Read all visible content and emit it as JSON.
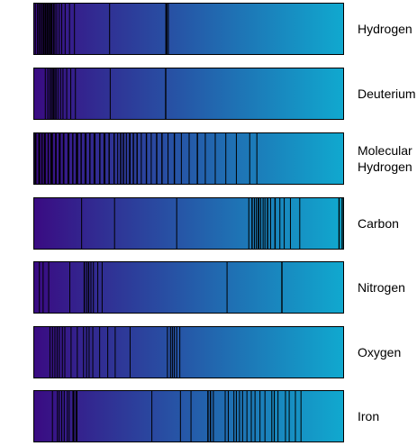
{
  "chart_data": {
    "type": "spectral-lines",
    "title": "",
    "xlabel": "",
    "ylabel": "",
    "x_domain": [
      0,
      1
    ],
    "gradient": {
      "start_color": "#3a0b82",
      "end_color": "#10a9cf"
    },
    "line_color": "#000000",
    "spectra": [
      {
        "name": "Hydrogen",
        "label_lines": [
          "Hydrogen"
        ],
        "lines": [
          {
            "x": 0.005,
            "w": 0.003
          },
          {
            "x": 0.012,
            "w": 0.004
          },
          {
            "x": 0.018,
            "w": 0.004
          },
          {
            "x": 0.024,
            "w": 0.004
          },
          {
            "x": 0.03,
            "w": 0.005
          },
          {
            "x": 0.036,
            "w": 0.005
          },
          {
            "x": 0.042,
            "w": 0.005
          },
          {
            "x": 0.048,
            "w": 0.005
          },
          {
            "x": 0.054,
            "w": 0.005
          },
          {
            "x": 0.058,
            "w": 0.004
          },
          {
            "x": 0.064,
            "w": 0.003
          },
          {
            "x": 0.068,
            "w": 0.002
          },
          {
            "x": 0.074,
            "w": 0.002
          },
          {
            "x": 0.082,
            "w": 0.002
          },
          {
            "x": 0.09,
            "w": 0.002
          },
          {
            "x": 0.101,
            "w": 0.002
          },
          {
            "x": 0.115,
            "w": 0.002
          },
          {
            "x": 0.131,
            "w": 0.002
          },
          {
            "x": 0.244,
            "w": 0.003
          },
          {
            "x": 0.425,
            "w": 0.006
          },
          {
            "x": 0.433,
            "w": 0.003
          }
        ]
      },
      {
        "name": "Deuterium",
        "label_lines": [
          "Deuterium"
        ],
        "lines": [
          {
            "x": 0.037,
            "w": 0.002
          },
          {
            "x": 0.045,
            "w": 0.002
          },
          {
            "x": 0.051,
            "w": 0.002
          },
          {
            "x": 0.056,
            "w": 0.002
          },
          {
            "x": 0.06,
            "w": 0.002
          },
          {
            "x": 0.064,
            "w": 0.002
          },
          {
            "x": 0.068,
            "w": 0.002
          },
          {
            "x": 0.072,
            "w": 0.002
          },
          {
            "x": 0.078,
            "w": 0.002
          },
          {
            "x": 0.086,
            "w": 0.002
          },
          {
            "x": 0.094,
            "w": 0.002
          },
          {
            "x": 0.106,
            "w": 0.002
          },
          {
            "x": 0.119,
            "w": 0.002
          },
          {
            "x": 0.134,
            "w": 0.002
          },
          {
            "x": 0.246,
            "w": 0.002
          },
          {
            "x": 0.424,
            "w": 0.004
          }
        ]
      },
      {
        "name": "Molecular Hydrogen",
        "label_lines": [
          "Molecular",
          "Hydrogen"
        ],
        "lines": [
          {
            "x": 0.004,
            "w": 0.006
          },
          {
            "x": 0.016,
            "w": 0.006
          },
          {
            "x": 0.026,
            "w": 0.004
          },
          {
            "x": 0.034,
            "w": 0.006
          },
          {
            "x": 0.046,
            "w": 0.004
          },
          {
            "x": 0.055,
            "w": 0.008
          },
          {
            "x": 0.07,
            "w": 0.005
          },
          {
            "x": 0.082,
            "w": 0.006
          },
          {
            "x": 0.095,
            "w": 0.005
          },
          {
            "x": 0.11,
            "w": 0.006
          },
          {
            "x": 0.125,
            "w": 0.004
          },
          {
            "x": 0.137,
            "w": 0.007
          },
          {
            "x": 0.152,
            "w": 0.004
          },
          {
            "x": 0.165,
            "w": 0.006
          },
          {
            "x": 0.18,
            "w": 0.004
          },
          {
            "x": 0.194,
            "w": 0.006
          },
          {
            "x": 0.212,
            "w": 0.004
          },
          {
            "x": 0.226,
            "w": 0.006
          },
          {
            "x": 0.242,
            "w": 0.004
          },
          {
            "x": 0.258,
            "w": 0.004
          },
          {
            "x": 0.27,
            "w": 0.003
          },
          {
            "x": 0.279,
            "w": 0.004
          },
          {
            "x": 0.288,
            "w": 0.004
          },
          {
            "x": 0.298,
            "w": 0.003
          },
          {
            "x": 0.308,
            "w": 0.005
          },
          {
            "x": 0.32,
            "w": 0.004
          },
          {
            "x": 0.332,
            "w": 0.004
          },
          {
            "x": 0.346,
            "w": 0.003
          },
          {
            "x": 0.362,
            "w": 0.004
          },
          {
            "x": 0.378,
            "w": 0.002
          },
          {
            "x": 0.395,
            "w": 0.004
          },
          {
            "x": 0.412,
            "w": 0.004
          },
          {
            "x": 0.432,
            "w": 0.003
          },
          {
            "x": 0.452,
            "w": 0.004
          },
          {
            "x": 0.475,
            "w": 0.002
          },
          {
            "x": 0.5,
            "w": 0.002
          },
          {
            "x": 0.526,
            "w": 0.004
          },
          {
            "x": 0.552,
            "w": 0.002
          },
          {
            "x": 0.584,
            "w": 0.002
          },
          {
            "x": 0.618,
            "w": 0.002
          },
          {
            "x": 0.652,
            "w": 0.002
          },
          {
            "x": 0.695,
            "w": 0.002
          },
          {
            "x": 0.718,
            "w": 0.002
          }
        ]
      },
      {
        "name": "Carbon",
        "label_lines": [
          "Carbon"
        ],
        "lines": [
          {
            "x": 0.154,
            "w": 0.002
          },
          {
            "x": 0.26,
            "w": 0.002
          },
          {
            "x": 0.46,
            "w": 0.002
          },
          {
            "x": 0.692,
            "w": 0.003
          },
          {
            "x": 0.702,
            "w": 0.004
          },
          {
            "x": 0.71,
            "w": 0.003
          },
          {
            "x": 0.716,
            "w": 0.002
          },
          {
            "x": 0.722,
            "w": 0.005
          },
          {
            "x": 0.73,
            "w": 0.003
          },
          {
            "x": 0.738,
            "w": 0.002
          },
          {
            "x": 0.744,
            "w": 0.002
          },
          {
            "x": 0.752,
            "w": 0.004
          },
          {
            "x": 0.762,
            "w": 0.003
          },
          {
            "x": 0.776,
            "w": 0.004
          },
          {
            "x": 0.792,
            "w": 0.002
          },
          {
            "x": 0.806,
            "w": 0.002
          },
          {
            "x": 0.826,
            "w": 0.002
          },
          {
            "x": 0.856,
            "w": 0.002
          },
          {
            "x": 0.982,
            "w": 0.004
          },
          {
            "x": 0.992,
            "w": 0.004
          }
        ]
      },
      {
        "name": "Nitrogen",
        "label_lines": [
          "Nitrogen"
        ],
        "lines": [
          {
            "x": 0.018,
            "w": 0.002
          },
          {
            "x": 0.03,
            "w": 0.002
          },
          {
            "x": 0.048,
            "w": 0.002
          },
          {
            "x": 0.116,
            "w": 0.002
          },
          {
            "x": 0.162,
            "w": 0.004
          },
          {
            "x": 0.17,
            "w": 0.003
          },
          {
            "x": 0.176,
            "w": 0.004
          },
          {
            "x": 0.184,
            "w": 0.002
          },
          {
            "x": 0.192,
            "w": 0.002
          },
          {
            "x": 0.206,
            "w": 0.002
          },
          {
            "x": 0.22,
            "w": 0.002
          },
          {
            "x": 0.622,
            "w": 0.002
          },
          {
            "x": 0.798,
            "w": 0.004
          }
        ]
      },
      {
        "name": "Oxygen",
        "label_lines": [
          "Oxygen"
        ],
        "lines": [
          {
            "x": 0.052,
            "w": 0.002
          },
          {
            "x": 0.06,
            "w": 0.003
          },
          {
            "x": 0.068,
            "w": 0.002
          },
          {
            "x": 0.075,
            "w": 0.002
          },
          {
            "x": 0.082,
            "w": 0.003
          },
          {
            "x": 0.092,
            "w": 0.002
          },
          {
            "x": 0.1,
            "w": 0.002
          },
          {
            "x": 0.12,
            "w": 0.002
          },
          {
            "x": 0.14,
            "w": 0.002
          },
          {
            "x": 0.16,
            "w": 0.002
          },
          {
            "x": 0.17,
            "w": 0.002
          },
          {
            "x": 0.178,
            "w": 0.003
          },
          {
            "x": 0.19,
            "w": 0.002
          },
          {
            "x": 0.212,
            "w": 0.002
          },
          {
            "x": 0.238,
            "w": 0.002
          },
          {
            "x": 0.262,
            "w": 0.002
          },
          {
            "x": 0.31,
            "w": 0.002
          },
          {
            "x": 0.43,
            "w": 0.002
          },
          {
            "x": 0.44,
            "w": 0.002
          },
          {
            "x": 0.446,
            "w": 0.002
          },
          {
            "x": 0.452,
            "w": 0.002
          },
          {
            "x": 0.46,
            "w": 0.002
          },
          {
            "x": 0.47,
            "w": 0.002
          }
        ]
      },
      {
        "name": "Iron",
        "label_lines": [
          "Iron"
        ],
        "lines": [
          {
            "x": 0.06,
            "w": 0.002
          },
          {
            "x": 0.076,
            "w": 0.002
          },
          {
            "x": 0.082,
            "w": 0.002
          },
          {
            "x": 0.09,
            "w": 0.002
          },
          {
            "x": 0.098,
            "w": 0.002
          },
          {
            "x": 0.108,
            "w": 0.002
          },
          {
            "x": 0.114,
            "w": 0.002
          },
          {
            "x": 0.126,
            "w": 0.006
          },
          {
            "x": 0.136,
            "w": 0.006
          },
          {
            "x": 0.38,
            "w": 0.002
          },
          {
            "x": 0.472,
            "w": 0.002
          },
          {
            "x": 0.506,
            "w": 0.002
          },
          {
            "x": 0.56,
            "w": 0.004
          },
          {
            "x": 0.568,
            "w": 0.004
          },
          {
            "x": 0.578,
            "w": 0.002
          },
          {
            "x": 0.616,
            "w": 0.002
          },
          {
            "x": 0.626,
            "w": 0.002
          },
          {
            "x": 0.644,
            "w": 0.002
          },
          {
            "x": 0.652,
            "w": 0.002
          },
          {
            "x": 0.662,
            "w": 0.002
          },
          {
            "x": 0.672,
            "w": 0.002
          },
          {
            "x": 0.686,
            "w": 0.002
          },
          {
            "x": 0.7,
            "w": 0.002
          },
          {
            "x": 0.712,
            "w": 0.002
          },
          {
            "x": 0.728,
            "w": 0.002
          },
          {
            "x": 0.744,
            "w": 0.002
          },
          {
            "x": 0.766,
            "w": 0.003
          },
          {
            "x": 0.774,
            "w": 0.003
          },
          {
            "x": 0.786,
            "w": 0.002
          },
          {
            "x": 0.81,
            "w": 0.002
          },
          {
            "x": 0.822,
            "w": 0.002
          },
          {
            "x": 0.842,
            "w": 0.002
          },
          {
            "x": 0.86,
            "w": 0.002
          }
        ]
      }
    ]
  }
}
